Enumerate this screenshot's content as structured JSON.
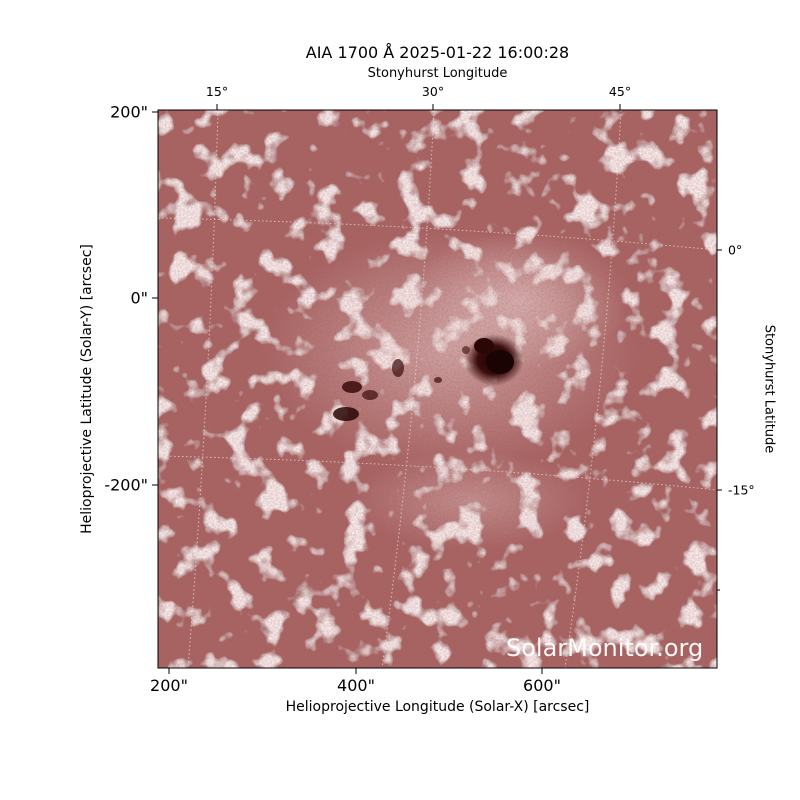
{
  "title": "AIA 1700 Å 2025-01-22 16:00:28",
  "axes": {
    "top_label": "Stonyhurst Longitude",
    "top_ticks": [
      "15°",
      "30°",
      "45°"
    ],
    "right_label": "Stonyhurst Latitude",
    "right_ticks": [
      "0°",
      "-15°"
    ],
    "left_label": "Helioprojective Latitude (Solar-Y) [arcsec]",
    "left_ticks": [
      "200\"",
      "0\"",
      "-200\""
    ],
    "bottom_label": "Helioprojective Longitude (Solar-X) [arcsec]",
    "bottom_ticks": [
      "200\"",
      "400\"",
      "600\""
    ]
  },
  "image": {
    "wavelength": "AIA 1700 Å",
    "colormap": "sdoaia1700",
    "base_color": "#a86464",
    "bright_color": "#f1dada",
    "dark_color": "#2a0606",
    "x_range_arcsec": [
      193,
      793
    ],
    "y_range_arcsec": [
      -393,
      200
    ],
    "sunspots": [
      {
        "x": 550,
        "y": -65,
        "label": "main sunspot"
      },
      {
        "x": 395,
        "y": -95,
        "label": "dark pores"
      }
    ],
    "grid": "dotted Stonyhurst grid"
  },
  "watermark": "SolarMonitor.org"
}
